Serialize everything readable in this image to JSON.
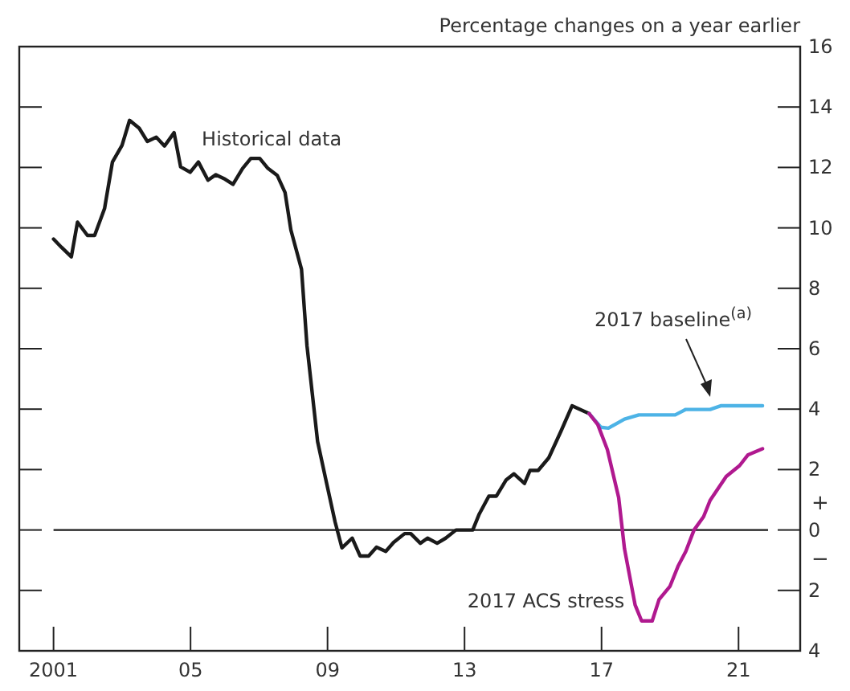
{
  "chart_data": {
    "type": "line",
    "ylabel": "Percentage changes on a year earlier",
    "xlim": [
      2000,
      2022.8
    ],
    "xticks": [
      {
        "value": 2001,
        "label": "2001"
      },
      {
        "value": 2005,
        "label": "05"
      },
      {
        "value": 2009,
        "label": "09"
      },
      {
        "value": 2013,
        "label": "13"
      },
      {
        "value": 2017,
        "label": "17"
      },
      {
        "value": 2021,
        "label": "21"
      }
    ],
    "ylim": [
      -4,
      16
    ],
    "yticks": [
      16,
      14,
      12,
      10,
      8,
      6,
      4,
      2,
      0,
      {
        "value": -2,
        "label": "2"
      },
      {
        "value": -4,
        "label": "4"
      }
    ],
    "grid": false,
    "marker": "none",
    "line_style": "solid",
    "series": [
      {
        "color": "#1a1a1a",
        "x": [
          2001.0,
          2001.23,
          2001.52,
          2001.7,
          2001.99,
          2002.2,
          2002.49,
          2002.72,
          2003.0,
          2003.22,
          2003.5,
          2003.74,
          2004.0,
          2004.24,
          2004.52,
          2004.71,
          2004.99,
          2005.23,
          2005.51,
          2005.74,
          2006.01,
          2006.24,
          2006.52,
          2006.76,
          2007.02,
          2007.26,
          2007.53,
          2007.76,
          2007.93,
          2008.24,
          2008.4,
          2008.71,
          2008.98,
          2009.22,
          2009.42,
          2009.72,
          2009.95,
          2010.2,
          2010.43,
          2010.7,
          2010.93,
          2011.25,
          2011.43,
          2011.71,
          2011.92,
          2012.2,
          2012.45,
          2012.75,
          2013.24,
          2013.43,
          2013.71,
          2013.93,
          2014.21,
          2014.44,
          2014.75,
          2014.91,
          2015.15,
          2015.46,
          2015.82,
          2016.14,
          2016.64
        ],
        "values": [
          9.63,
          9.36,
          9.04,
          10.19,
          9.75,
          9.75,
          10.64,
          12.18,
          12.73,
          13.56,
          13.3,
          12.86,
          13.0,
          12.71,
          13.15,
          12.02,
          11.84,
          12.18,
          11.58,
          11.76,
          11.61,
          11.44,
          11.97,
          12.3,
          12.3,
          11.97,
          11.74,
          11.17,
          9.93,
          8.63,
          6.1,
          2.93,
          1.51,
          0.27,
          -0.59,
          -0.27,
          -0.86,
          -0.86,
          -0.57,
          -0.71,
          -0.41,
          -0.12,
          -0.12,
          -0.44,
          -0.27,
          -0.44,
          -0.27,
          0,
          0,
          0.53,
          1.12,
          1.12,
          1.65,
          1.86,
          1.54,
          1.97,
          1.97,
          2.39,
          3.28,
          4.11,
          3.85
        ]
      },
      {
        "color": "#4db3e6",
        "x": [
          2016.64,
          2016.98,
          2017.2,
          2017.67,
          2018.09,
          2019.15,
          2019.46,
          2020.17,
          2020.48,
          2021.7
        ],
        "values": [
          3.85,
          3.4,
          3.37,
          3.67,
          3.81,
          3.81,
          3.99,
          3.99,
          4.11,
          4.11
        ]
      },
      {
        "color": "#b0198f",
        "x": [
          2016.64,
          2016.89,
          2017.17,
          2017.5,
          2017.67,
          2017.98,
          2018.17,
          2018.48,
          2018.68,
          2019.0,
          2019.23,
          2019.46,
          2019.7,
          2019.98,
          2020.17,
          2020.64,
          2021.03,
          2021.27,
          2021.7
        ],
        "values": [
          3.85,
          3.49,
          2.66,
          1.07,
          -0.62,
          -2.48,
          -3.01,
          -3.01,
          -2.3,
          -1.86,
          -1.21,
          -0.71,
          0,
          0.44,
          0.98,
          1.77,
          2.13,
          2.48,
          2.69
        ]
      }
    ],
    "ref_lines": [
      {
        "axis": "y",
        "value": 0,
        "color": "#1a1a1a"
      }
    ],
    "annotations": [
      {
        "text": "Historical data",
        "x": 2006.9,
        "y": 12.3
      },
      "2017 baseline$^{(a)}$",
      {
        "text": "2017 ACS stress",
        "x": 2017.95,
        "y": -2.3
      },
      "+",
      "−"
    ]
  }
}
